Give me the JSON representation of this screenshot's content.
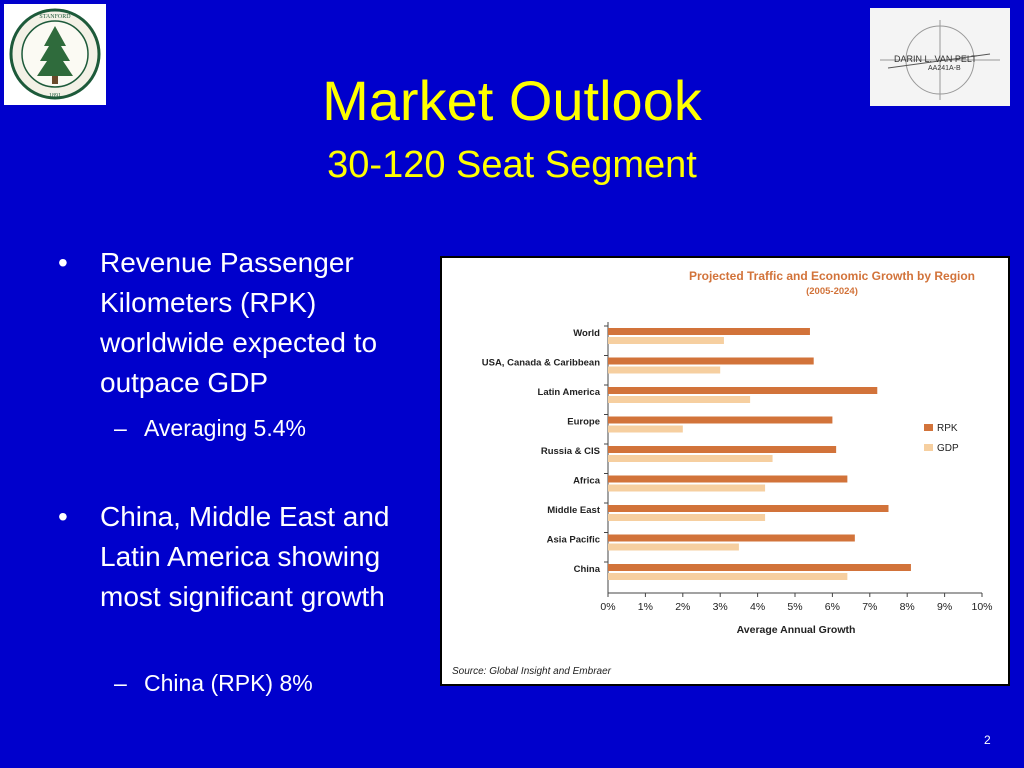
{
  "slide": {
    "title": "Market Outlook",
    "subtitle": "30-120 Seat Segment",
    "page_number": "2",
    "colors": {
      "background": "#0000cc",
      "title": "#ffff00",
      "body_text": "#ffffff"
    }
  },
  "logos": {
    "left": {
      "kind": "university seal",
      "text": "LELAND STANFORD JUNIOR UNIVERSITY · ORGANIZED 1891"
    },
    "right": {
      "kind": "engineering drawing title block",
      "text": "DARIN L. VAN PELT AA241A-B"
    }
  },
  "bullets": [
    {
      "text": "Revenue Passenger Kilometers (RPK) worldwide expected to outpace GDP",
      "sub": "Averaging 5.4%"
    },
    {
      "text": "China, Middle East and Latin America showing most significant growth",
      "sub": "China (RPK) 8%"
    }
  ],
  "chart_data": {
    "type": "bar",
    "orientation": "horizontal",
    "title": "Projected Traffic and Economic Growth by Region",
    "subtitle": "(2005-2024)",
    "xlabel": "Average Annual Growth",
    "ylabel": "",
    "categories": [
      "World",
      "USA, Canada & Caribbean",
      "Latin America",
      "Europe",
      "Russia & CIS",
      "Africa",
      "Middle East",
      "Asia Pacific",
      "China"
    ],
    "series": [
      {
        "name": "RPK",
        "color": "#d2733a",
        "values": [
          5.4,
          5.5,
          7.2,
          6.0,
          6.1,
          6.4,
          7.5,
          6.6,
          8.1
        ]
      },
      {
        "name": "GDP",
        "color": "#f6cfa0",
        "values": [
          3.1,
          3.0,
          3.8,
          2.0,
          4.4,
          4.2,
          4.2,
          3.5,
          6.4
        ]
      }
    ],
    "xlim": [
      0,
      10
    ],
    "xticks": [
      "0%",
      "1%",
      "2%",
      "3%",
      "4%",
      "5%",
      "6%",
      "7%",
      "8%",
      "9%",
      "10%"
    ],
    "legend_position": "right",
    "grid": false,
    "source": "Source: Global Insight and Embraer"
  }
}
